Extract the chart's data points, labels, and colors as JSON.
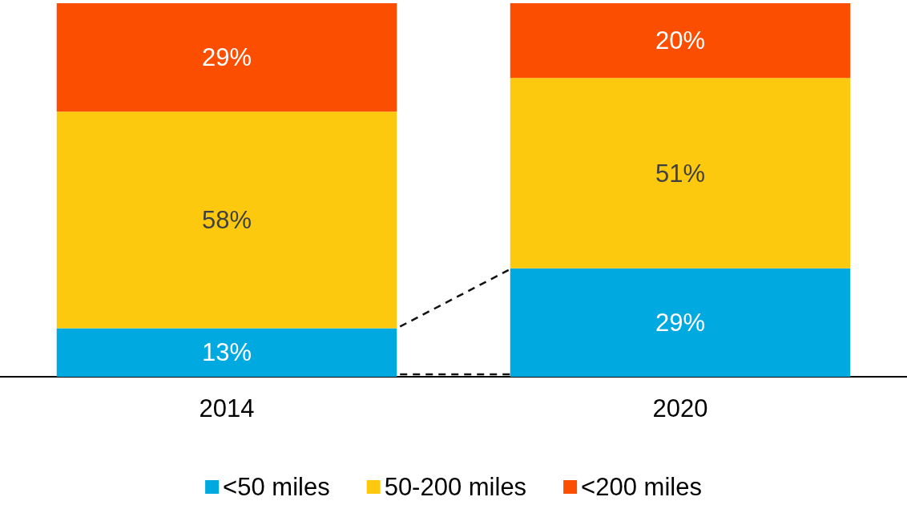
{
  "chart_data": {
    "type": "bar",
    "stacked": true,
    "categories": [
      "2014",
      "2020"
    ],
    "series": [
      {
        "name": "<50 miles",
        "color": "#00a9e0",
        "values": [
          13,
          29
        ],
        "value_labels": [
          "13%",
          "29%"
        ]
      },
      {
        "name": "50-200 miles",
        "color": "#fdc90f",
        "values": [
          58,
          51
        ],
        "value_labels": [
          "58%",
          "51%"
        ]
      },
      {
        "name": "<200 miles",
        "color": "#fc4e00",
        "values": [
          29,
          20
        ],
        "value_labels": [
          "29%",
          "20%"
        ]
      }
    ],
    "ylim": [
      0,
      100
    ],
    "legend": "bottom",
    "grid": false,
    "tick_labels": "x"
  }
}
